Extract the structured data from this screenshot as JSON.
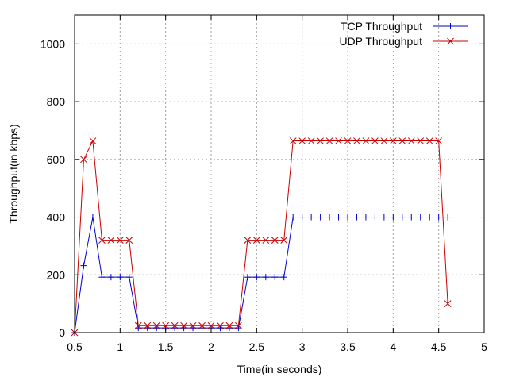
{
  "chart_data": {
    "type": "line",
    "title": "",
    "xlabel": "Time(in seconds)",
    "ylabel": "Throughput(in kbps)",
    "xlim": [
      0.5,
      5
    ],
    "ylim": [
      0,
      1100
    ],
    "xticks": [
      0.5,
      1,
      1.5,
      2,
      2.5,
      3,
      3.5,
      4,
      4.5,
      5
    ],
    "xtick_labels": [
      "0.5",
      "1",
      "1.5",
      "2",
      "2.5",
      "3",
      "3.5",
      "4",
      "4.5",
      "5"
    ],
    "yticks": [
      0,
      200,
      400,
      600,
      800,
      1000
    ],
    "ytick_labels": [
      "0",
      "200",
      "400",
      "600",
      "800",
      "1000"
    ],
    "grid": true,
    "legend_position": "top-right",
    "series": [
      {
        "name": "TCP Throughput",
        "color": "#0000cc",
        "marker": "plus",
        "x": [
          0.5,
          0.6,
          0.7,
          0.8,
          0.9,
          1.0,
          1.1,
          1.2,
          1.3,
          1.4,
          1.5,
          1.6,
          1.7,
          1.8,
          1.9,
          2.0,
          2.1,
          2.2,
          2.3,
          2.4,
          2.5,
          2.6,
          2.7,
          2.8,
          2.9,
          3.0,
          3.1,
          3.2,
          3.3,
          3.4,
          3.5,
          3.6,
          3.7,
          3.8,
          3.9,
          4.0,
          4.1,
          4.2,
          4.3,
          4.4,
          4.5,
          4.6
        ],
        "y": [
          0,
          232,
          400,
          192,
          192,
          192,
          192,
          16,
          16,
          16,
          16,
          16,
          16,
          16,
          16,
          16,
          16,
          16,
          16,
          192,
          192,
          192,
          192,
          192,
          400,
          400,
          400,
          400,
          400,
          400,
          400,
          400,
          400,
          400,
          400,
          400,
          400,
          400,
          400,
          400,
          400,
          400
        ]
      },
      {
        "name": "UDP Throughput",
        "color": "#cc0000",
        "marker": "cross",
        "x": [
          0.5,
          0.6,
          0.7,
          0.8,
          0.9,
          1.0,
          1.1,
          1.2,
          1.3,
          1.4,
          1.5,
          1.6,
          1.7,
          1.8,
          1.9,
          2.0,
          2.1,
          2.2,
          2.3,
          2.4,
          2.5,
          2.6,
          2.7,
          2.8,
          2.9,
          3.0,
          3.1,
          3.2,
          3.3,
          3.4,
          3.5,
          3.6,
          3.7,
          3.8,
          3.9,
          4.0,
          4.1,
          4.2,
          4.3,
          4.4,
          4.5,
          4.6
        ],
        "y": [
          0,
          600,
          664,
          320,
          320,
          320,
          320,
          24,
          24,
          24,
          24,
          24,
          24,
          24,
          24,
          24,
          24,
          24,
          24,
          320,
          320,
          320,
          320,
          320,
          664,
          664,
          664,
          664,
          664,
          664,
          664,
          664,
          664,
          664,
          664,
          664,
          664,
          664,
          664,
          664,
          664,
          100
        ]
      }
    ]
  }
}
